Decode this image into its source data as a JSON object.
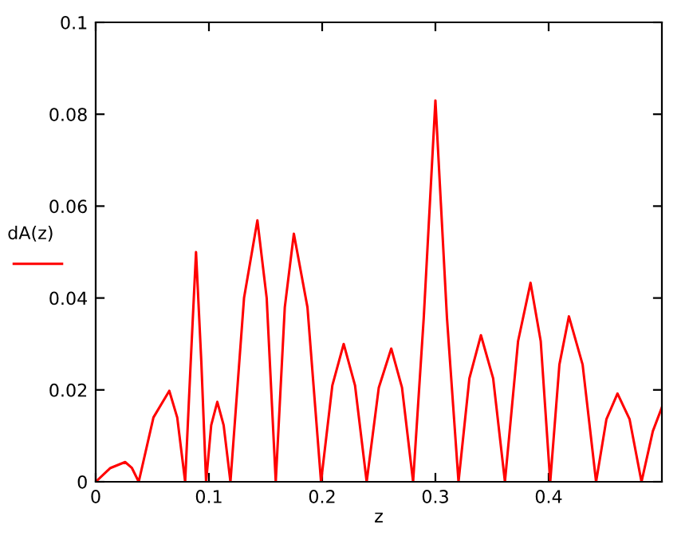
{
  "chart_data": {
    "type": "line",
    "xlabel": "z",
    "ylabel": "dA(z)",
    "x": [
      0,
      0.013,
      0.026,
      0.032,
      0.038,
      0.051,
      0.065,
      0.072,
      0.079,
      0.0839,
      0.0886,
      0.0933,
      0.0975,
      0.102,
      0.1074,
      0.113,
      0.119,
      0.131,
      0.1428,
      0.151,
      0.159,
      0.167,
      0.175,
      0.187,
      0.199,
      0.209,
      0.219,
      0.229,
      0.2393,
      0.25,
      0.261,
      0.2705,
      0.2803,
      0.2897,
      0.3,
      0.3102,
      0.3204,
      0.33,
      0.3402,
      0.351,
      0.3614,
      0.373,
      0.384,
      0.393,
      0.4014,
      0.4095,
      0.4179,
      0.43,
      0.4419,
      0.451,
      0.4608,
      0.4715,
      0.482,
      0.492,
      0.5
    ],
    "series": [
      {
        "color": "#ff0000",
        "values": [
          0,
          0.003,
          0.0043,
          0.003,
          0,
          0.014,
          0.0198,
          0.014,
          0,
          0.026,
          0.05,
          0.026,
          0,
          0.0123,
          0.0174,
          0.0123,
          0,
          0.04,
          0.0569,
          0.04,
          0,
          0.038,
          0.054,
          0.038,
          0,
          0.021,
          0.03,
          0.021,
          0,
          0.0205,
          0.029,
          0.0205,
          0,
          0.0357,
          0.083,
          0.0357,
          0,
          0.0225,
          0.0319,
          0.0225,
          0,
          0.0306,
          0.0433,
          0.0306,
          0,
          0.0255,
          0.036,
          0.0255,
          0,
          0.0136,
          0.0192,
          0.0136,
          0,
          0.011,
          0.0162
        ]
      }
    ],
    "xlim": [
      0,
      0.5
    ],
    "ylim": [
      0,
      0.1
    ],
    "xticks": [
      0,
      0.1,
      0.2,
      0.3,
      0.4
    ],
    "yticks": [
      0,
      0.02,
      0.04,
      0.06,
      0.08,
      0.1
    ],
    "grid": false,
    "legend": false,
    "marker": "none",
    "line_style": "solid"
  }
}
